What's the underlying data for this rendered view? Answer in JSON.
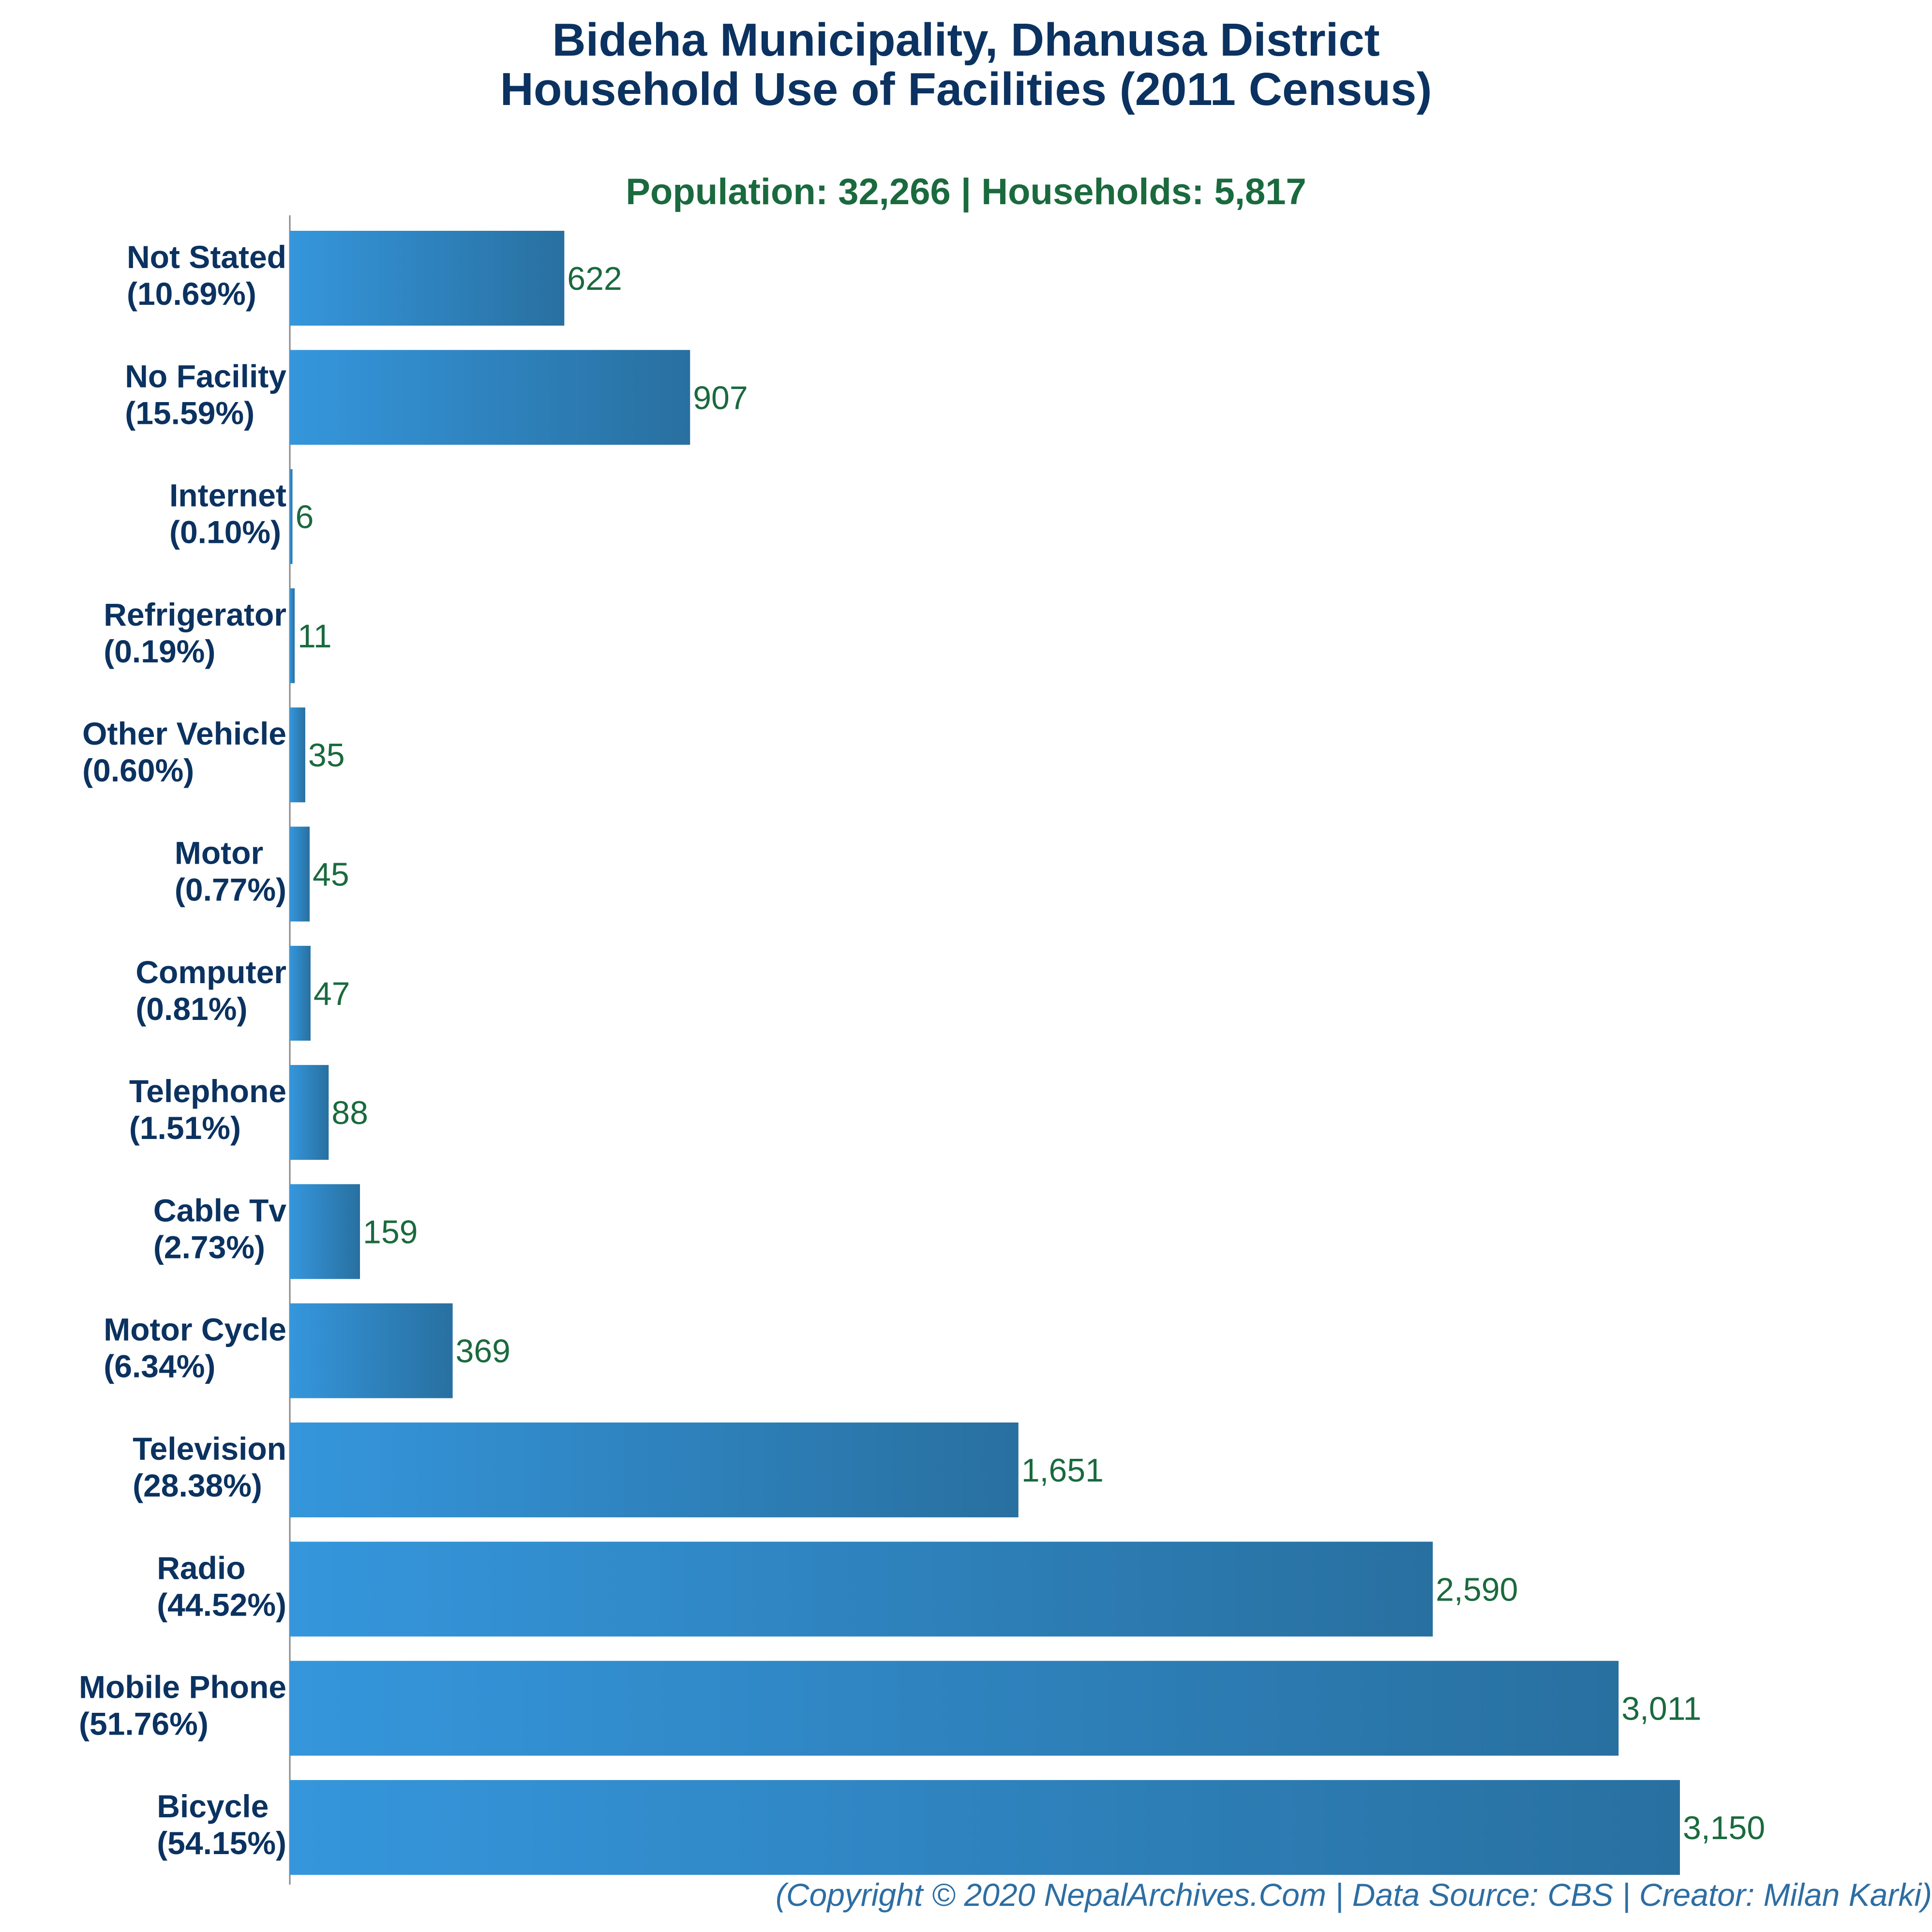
{
  "title_line1": "Bideha Municipality, Dhanusa District",
  "title_line2": "Household Use of Facilities (2011 Census)",
  "subtitle": "Population: 32,266 | Households: 5,817",
  "footer": "(Copyright © 2020 NepalArchives.Com | Data Source: CBS | Creator: Milan Karki)",
  "colors": {
    "bar_start": "#3596dc",
    "bar_end": "#2870a0",
    "value_label": "#1a6a3e",
    "category_label": "#0b3260",
    "axis": "#888888"
  },
  "chart_data": {
    "type": "bar",
    "orientation": "horizontal",
    "title": "Bideha Municipality, Dhanusa District Household Use of Facilities (2011 Census)",
    "subtitle": "Population: 32,266 | Households: 5,817",
    "xlabel": "",
    "ylabel": "",
    "xlim": [
      0,
      3300
    ],
    "grid": false,
    "categories": [
      "Not Stated",
      "No Facility",
      "Internet",
      "Refrigerator",
      "Other Vehicle",
      "Motor",
      "Computer",
      "Telephone",
      "Cable Tv",
      "Motor Cycle",
      "Television",
      "Radio",
      "Mobile Phone",
      "Bicycle"
    ],
    "percentages": [
      "10.69%",
      "15.59%",
      "0.10%",
      "0.19%",
      "0.60%",
      "0.77%",
      "0.81%",
      "1.51%",
      "2.73%",
      "6.34%",
      "28.38%",
      "44.52%",
      "51.76%",
      "54.15%"
    ],
    "values": [
      622,
      907,
      6,
      11,
      35,
      45,
      47,
      88,
      159,
      369,
      1651,
      2590,
      3011,
      3150
    ],
    "value_labels": [
      "622",
      "907",
      "6",
      "11",
      "35",
      "45",
      "47",
      "88",
      "159",
      "369",
      "1,651",
      "2,590",
      "3,011",
      "3,150"
    ]
  }
}
